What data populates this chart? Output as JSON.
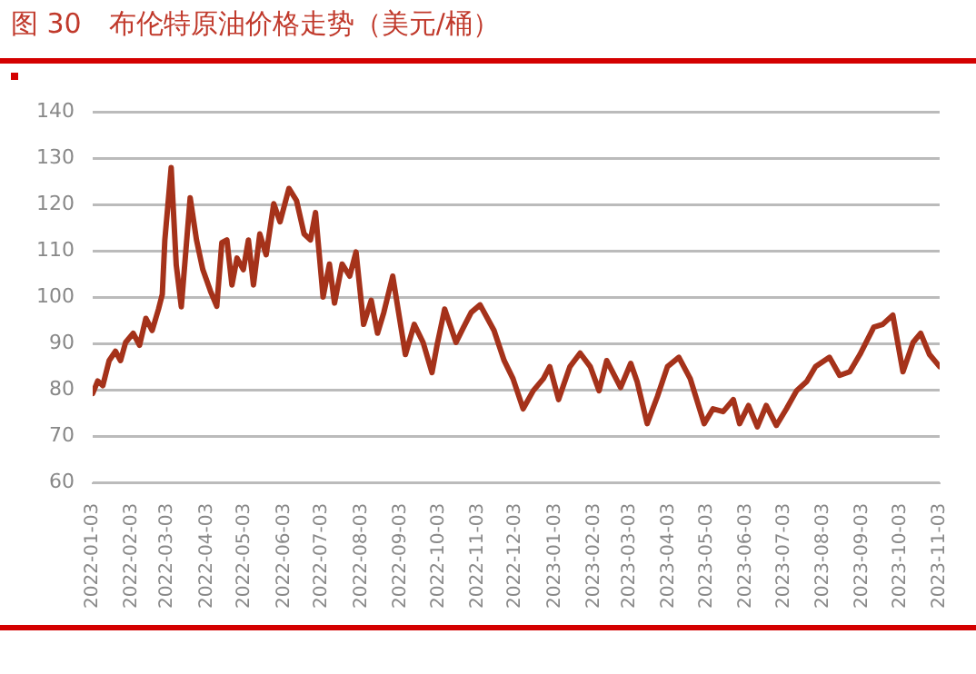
{
  "chart_data": {
    "type": "line",
    "title": "图 30　布伦特原油价格走势（美元/桶）",
    "x": [
      "2022-01-03",
      "2022-01-07",
      "2022-01-11",
      "2022-01-16",
      "2022-01-21",
      "2022-01-25",
      "2022-01-29",
      "2022-02-04",
      "2022-02-09",
      "2022-02-14",
      "2022-02-19",
      "2022-02-24",
      "2022-02-27",
      "2022-03-01",
      "2022-03-06",
      "2022-03-10",
      "2022-03-14",
      "2022-03-21",
      "2022-03-26",
      "2022-03-31",
      "2022-04-06",
      "2022-04-11",
      "2022-04-15",
      "2022-04-19",
      "2022-04-23",
      "2022-04-27",
      "2022-05-02",
      "2022-05-06",
      "2022-05-10",
      "2022-05-15",
      "2022-05-20",
      "2022-05-26",
      "2022-05-31",
      "2022-06-07",
      "2022-06-13",
      "2022-06-19",
      "2022-06-24",
      "2022-06-28",
      "2022-07-04",
      "2022-07-09",
      "2022-07-13",
      "2022-07-19",
      "2022-07-25",
      "2022-07-30",
      "2022-08-05",
      "2022-08-11",
      "2022-08-16",
      "2022-08-21",
      "2022-08-28",
      "2022-09-07",
      "2022-09-14",
      "2022-09-21",
      "2022-09-28",
      "2022-10-02",
      "2022-10-08",
      "2022-10-17",
      "2022-10-23",
      "2022-10-29",
      "2022-11-05",
      "2022-11-16",
      "2022-11-24",
      "2022-12-01",
      "2022-12-09",
      "2022-12-17",
      "2022-12-25",
      "2022-12-30",
      "2023-01-06",
      "2023-01-15",
      "2023-01-23",
      "2023-01-31",
      "2023-02-07",
      "2023-02-13",
      "2023-02-24",
      "2023-03-04",
      "2023-03-09",
      "2023-03-17",
      "2023-03-25",
      "2023-04-02",
      "2023-04-11",
      "2023-04-20",
      "2023-05-01",
      "2023-05-08",
      "2023-05-16",
      "2023-05-24",
      "2023-05-29",
      "2023-06-05",
      "2023-06-12",
      "2023-06-19",
      "2023-06-27",
      "2023-07-05",
      "2023-07-13",
      "2023-07-21",
      "2023-07-28",
      "2023-08-08",
      "2023-08-16",
      "2023-08-24",
      "2023-09-01",
      "2023-09-12",
      "2023-09-19",
      "2023-09-27",
      "2023-10-05",
      "2023-10-13",
      "2023-10-19",
      "2023-10-26",
      "2023-11-03"
    ],
    "series": [
      {
        "color": "#a5321a",
        "values": [
          79.3,
          82,
          81,
          86.4,
          88.4,
          86.4,
          90.3,
          92.3,
          89.7,
          95.5,
          92.9,
          97.5,
          100.7,
          112.4,
          128,
          107,
          98,
          121.5,
          112.4,
          106,
          101.4,
          98.1,
          111.8,
          112.4,
          102.7,
          108.5,
          106,
          112.4,
          102.7,
          113.7,
          109.2,
          120.2,
          116.3,
          123.5,
          120.9,
          113.7,
          112.4,
          118.3,
          100.1,
          107.2,
          98.8,
          107.2,
          104.6,
          109.8,
          94.2,
          99.4,
          92.3,
          96.8,
          104.6,
          87.7,
          94.2,
          90.3,
          83.8,
          89.7,
          97.5,
          90.3,
          93.6,
          96.8,
          98.4,
          92.9,
          86.4,
          82.5,
          76,
          79.9,
          82.5,
          85.1,
          78,
          85.1,
          88,
          85.1,
          79.9,
          86.4,
          80.6,
          85.8,
          81.9,
          72.8,
          78.6,
          85.1,
          87.1,
          82.5,
          72.8,
          76,
          75.4,
          78,
          72.8,
          76.7,
          72.1,
          76.7,
          72.4,
          76,
          79.9,
          81.9,
          85.1,
          87.1,
          83.2,
          84,
          87.7,
          93.6,
          94.2,
          96.2,
          84,
          90.3,
          92.3,
          87.7,
          85.1
        ]
      }
    ],
    "xlim": [
      "2022-01-03",
      "2023-11-03"
    ],
    "xticks": [
      "2022-01-03",
      "2022-02-03",
      "2022-03-03",
      "2022-04-03",
      "2022-05-03",
      "2022-06-03",
      "2022-07-03",
      "2022-08-03",
      "2022-09-03",
      "2022-10-03",
      "2022-11-03",
      "2022-12-03",
      "2023-01-03",
      "2023-02-03",
      "2023-03-03",
      "2023-04-03",
      "2023-05-03",
      "2023-06-03",
      "2023-07-03",
      "2023-08-03",
      "2023-09-03",
      "2023-10-03",
      "2023-11-03"
    ],
    "ylim": [
      60,
      140
    ],
    "yticks": [
      60,
      70,
      80,
      90,
      100,
      110,
      120,
      130,
      140
    ],
    "grid": "y",
    "legend": false,
    "marker": "none",
    "line_style": "solid"
  }
}
